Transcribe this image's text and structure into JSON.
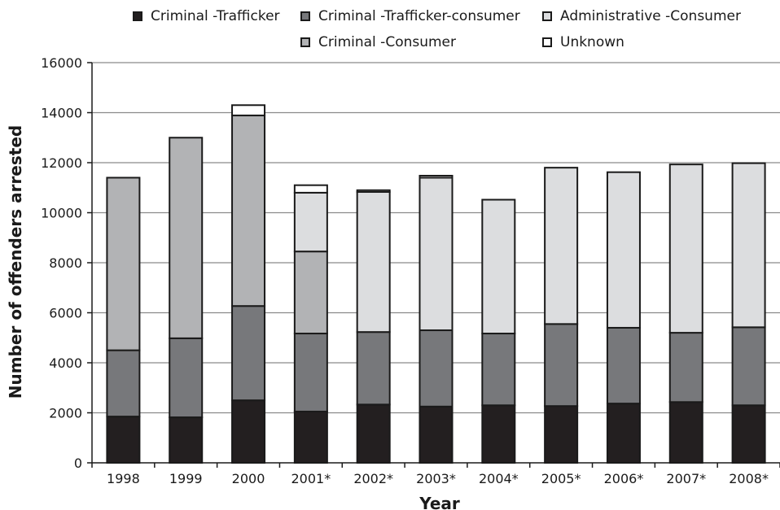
{
  "chart_data": {
    "type": "bar",
    "stacked": true,
    "title": "",
    "xlabel": "Year",
    "ylabel": "Number of offenders arrested",
    "ylim": [
      0,
      16000
    ],
    "yticks": [
      0,
      2000,
      4000,
      6000,
      8000,
      10000,
      12000,
      14000,
      16000
    ],
    "grid": true,
    "legend_position": "top",
    "categories": [
      "1998",
      "1999",
      "2000",
      "2001*",
      "2002*",
      "2003*",
      "2004*",
      "2005*",
      "2006*",
      "2007*",
      "2008*"
    ],
    "series": [
      {
        "name": "Criminal -Trafficker",
        "color": "#231f20",
        "values": [
          1850,
          1820,
          2500,
          2050,
          2330,
          2250,
          2300,
          2270,
          2370,
          2430,
          2300
        ]
      },
      {
        "name": "Criminal -Trafficker-consumer",
        "color": "#77787b",
        "values": [
          2650,
          3160,
          3770,
          3120,
          2900,
          3050,
          2870,
          3280,
          3030,
          2770,
          3120
        ]
      },
      {
        "name": "Criminal -Consumer",
        "color": "#b2b3b5",
        "values": [
          6900,
          8020,
          7620,
          3280,
          0,
          0,
          0,
          0,
          0,
          0,
          0
        ]
      },
      {
        "name": "Administrative -Consumer",
        "color": "#dcdddf",
        "values": [
          0,
          0,
          0,
          2350,
          5600,
          6100,
          5350,
          6250,
          6220,
          6730,
          6560
        ]
      },
      {
        "name": "Unknown",
        "color": "#ffffff",
        "values": [
          0,
          0,
          410,
          300,
          70,
          80,
          0,
          0,
          0,
          0,
          0
        ]
      }
    ],
    "legend": [
      {
        "label": "Criminal -Trafficker",
        "color": "#231f20"
      },
      {
        "label": "Criminal -Trafficker-consumer",
        "color": "#77787b"
      },
      {
        "label": "Administrative -Consumer",
        "color": "#dcdddf"
      },
      {
        "label": "Criminal -Consumer",
        "color": "#b2b3b5"
      },
      {
        "label": "Unknown",
        "color": "#ffffff"
      }
    ]
  }
}
